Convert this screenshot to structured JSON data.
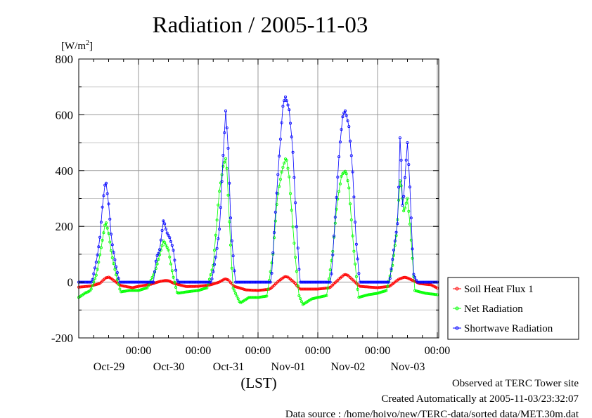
{
  "chart_data": {
    "type": "line",
    "title": "Radiation / 2005-11-03",
    "ylabel_unit": "[W/m",
    "ylabel_sup": "2",
    "ylabel_close": "]",
    "xlabel": "(LST)",
    "ylim": [
      -200,
      800
    ],
    "yticks": [
      "800",
      "600",
      "400",
      "200",
      "0",
      "-200"
    ],
    "ytick_values": [
      800,
      600,
      400,
      200,
      0,
      -200
    ],
    "xlim": [
      0,
      6
    ],
    "xticks": [
      {
        "x": 1,
        "time": "00:00",
        "date": "Oct-29"
      },
      {
        "x": 2,
        "time": "00:00",
        "date": "Oct-30"
      },
      {
        "x": 3,
        "time": "00:00",
        "date": "Oct-31"
      },
      {
        "x": 4,
        "time": "00:00",
        "date": "Nov-01"
      },
      {
        "x": 5,
        "time": "00:00",
        "date": "Nov-02"
      },
      {
        "x": 6,
        "time": "00:00",
        "date": "Nov-03"
      }
    ],
    "grid": true,
    "legend_position": "right",
    "series": [
      {
        "name": "Soil Heat Flux 1",
        "color": "#ff0000",
        "marker": "circle",
        "key": [
          [
            0.0,
            -18
          ],
          [
            0.2,
            -14
          ],
          [
            0.35,
            -5
          ],
          [
            0.45,
            15
          ],
          [
            0.5,
            18
          ],
          [
            0.55,
            12
          ],
          [
            0.7,
            -12
          ],
          [
            0.9,
            -20
          ],
          [
            1.0,
            -15
          ],
          [
            1.2,
            -8
          ],
          [
            1.35,
            2
          ],
          [
            1.45,
            6
          ],
          [
            1.5,
            5
          ],
          [
            1.6,
            -5
          ],
          [
            1.8,
            -16
          ],
          [
            2.0,
            -15
          ],
          [
            2.2,
            -10
          ],
          [
            2.35,
            0
          ],
          [
            2.45,
            12
          ],
          [
            2.5,
            8
          ],
          [
            2.6,
            -15
          ],
          [
            2.8,
            -28
          ],
          [
            3.0,
            -30
          ],
          [
            3.2,
            -25
          ],
          [
            3.35,
            5
          ],
          [
            3.45,
            20
          ],
          [
            3.5,
            18
          ],
          [
            3.6,
            0
          ],
          [
            3.7,
            -25
          ],
          [
            4.0,
            -25
          ],
          [
            4.2,
            -20
          ],
          [
            4.35,
            10
          ],
          [
            4.45,
            28
          ],
          [
            4.5,
            25
          ],
          [
            4.6,
            5
          ],
          [
            4.7,
            -15
          ],
          [
            5.0,
            -20
          ],
          [
            5.2,
            -15
          ],
          [
            5.35,
            10
          ],
          [
            5.45,
            18
          ],
          [
            5.5,
            15
          ],
          [
            5.6,
            5
          ],
          [
            5.7,
            -5
          ],
          [
            5.9,
            -10
          ],
          [
            6.0,
            -22
          ]
        ]
      },
      {
        "name": "Net Radiation",
        "color": "#00ff00",
        "marker": "circle",
        "key": [
          [
            0.0,
            -55
          ],
          [
            0.1,
            -40
          ],
          [
            0.2,
            -30
          ],
          [
            0.3,
            30
          ],
          [
            0.38,
            130
          ],
          [
            0.45,
            220
          ],
          [
            0.5,
            175
          ],
          [
            0.55,
            100
          ],
          [
            0.62,
            30
          ],
          [
            0.7,
            -35
          ],
          [
            0.85,
            -30
          ],
          [
            1.0,
            -30
          ],
          [
            1.15,
            -20
          ],
          [
            1.28,
            40
          ],
          [
            1.35,
            95
          ],
          [
            1.42,
            150
          ],
          [
            1.5,
            115
          ],
          [
            1.58,
            20
          ],
          [
            1.65,
            -40
          ],
          [
            1.8,
            -35
          ],
          [
            2.0,
            -30
          ],
          [
            2.15,
            -20
          ],
          [
            2.25,
            60
          ],
          [
            2.35,
            320
          ],
          [
            2.42,
            420
          ],
          [
            2.47,
            450
          ],
          [
            2.52,
            220
          ],
          [
            2.58,
            -20
          ],
          [
            2.7,
            -75
          ],
          [
            2.85,
            -55
          ],
          [
            3.0,
            -55
          ],
          [
            3.15,
            -50
          ],
          [
            3.25,
            100
          ],
          [
            3.32,
            300
          ],
          [
            3.4,
            400
          ],
          [
            3.47,
            450
          ],
          [
            3.52,
            380
          ],
          [
            3.6,
            150
          ],
          [
            3.68,
            -45
          ],
          [
            3.75,
            -80
          ],
          [
            3.9,
            -60
          ],
          [
            4.0,
            -55
          ],
          [
            4.15,
            -48
          ],
          [
            4.25,
            110
          ],
          [
            4.32,
            280
          ],
          [
            4.4,
            385
          ],
          [
            4.47,
            400
          ],
          [
            4.52,
            340
          ],
          [
            4.6,
            120
          ],
          [
            4.68,
            -55
          ],
          [
            4.85,
            -45
          ],
          [
            5.0,
            -40
          ],
          [
            5.15,
            -30
          ],
          [
            5.25,
            60
          ],
          [
            5.32,
            180
          ],
          [
            5.38,
            380
          ],
          [
            5.44,
            250
          ],
          [
            5.5,
            300
          ],
          [
            5.55,
            190
          ],
          [
            5.62,
            -30
          ],
          [
            5.8,
            -40
          ],
          [
            6.0,
            -45
          ]
        ]
      },
      {
        "name": "Shortwave Radiation",
        "color": "#0000ff",
        "marker": "circle",
        "key": [
          [
            0.0,
            0
          ],
          [
            0.22,
            0
          ],
          [
            0.3,
            80
          ],
          [
            0.35,
            150
          ],
          [
            0.4,
            280
          ],
          [
            0.45,
            370
          ],
          [
            0.5,
            280
          ],
          [
            0.55,
            150
          ],
          [
            0.62,
            60
          ],
          [
            0.68,
            0
          ],
          [
            1.0,
            0
          ],
          [
            1.25,
            0
          ],
          [
            1.3,
            90
          ],
          [
            1.35,
            110
          ],
          [
            1.42,
            225
          ],
          [
            1.47,
            180
          ],
          [
            1.52,
            160
          ],
          [
            1.58,
            120
          ],
          [
            1.65,
            0
          ],
          [
            2.0,
            0
          ],
          [
            2.22,
            0
          ],
          [
            2.3,
            100
          ],
          [
            2.36,
            200
          ],
          [
            2.42,
            470
          ],
          [
            2.46,
            620
          ],
          [
            2.5,
            480
          ],
          [
            2.55,
            180
          ],
          [
            2.62,
            0
          ],
          [
            3.0,
            0
          ],
          [
            3.22,
            0
          ],
          [
            3.3,
            280
          ],
          [
            3.36,
            470
          ],
          [
            3.42,
            640
          ],
          [
            3.46,
            665
          ],
          [
            3.52,
            620
          ],
          [
            3.58,
            480
          ],
          [
            3.64,
            220
          ],
          [
            3.7,
            0
          ],
          [
            4.0,
            0
          ],
          [
            4.22,
            0
          ],
          [
            4.3,
            260
          ],
          [
            4.36,
            470
          ],
          [
            4.42,
            600
          ],
          [
            4.46,
            615
          ],
          [
            4.52,
            560
          ],
          [
            4.58,
            410
          ],
          [
            4.64,
            150
          ],
          [
            4.7,
            0
          ],
          [
            5.0,
            0
          ],
          [
            5.2,
            0
          ],
          [
            5.28,
            130
          ],
          [
            5.34,
            220
          ],
          [
            5.38,
            560
          ],
          [
            5.42,
            250
          ],
          [
            5.46,
            380
          ],
          [
            5.5,
            500
          ],
          [
            5.54,
            350
          ],
          [
            5.6,
            30
          ],
          [
            5.66,
            0
          ],
          [
            6.0,
            0
          ]
        ]
      }
    ]
  },
  "footer": {
    "line1": "Observed at TERC Tower site",
    "line2": "Created Automatically at 2005-11-03/23:32:07",
    "line3": "Data source : /home/hoivo/new/TERC-data/sorted  data/MET.30m.dat"
  }
}
